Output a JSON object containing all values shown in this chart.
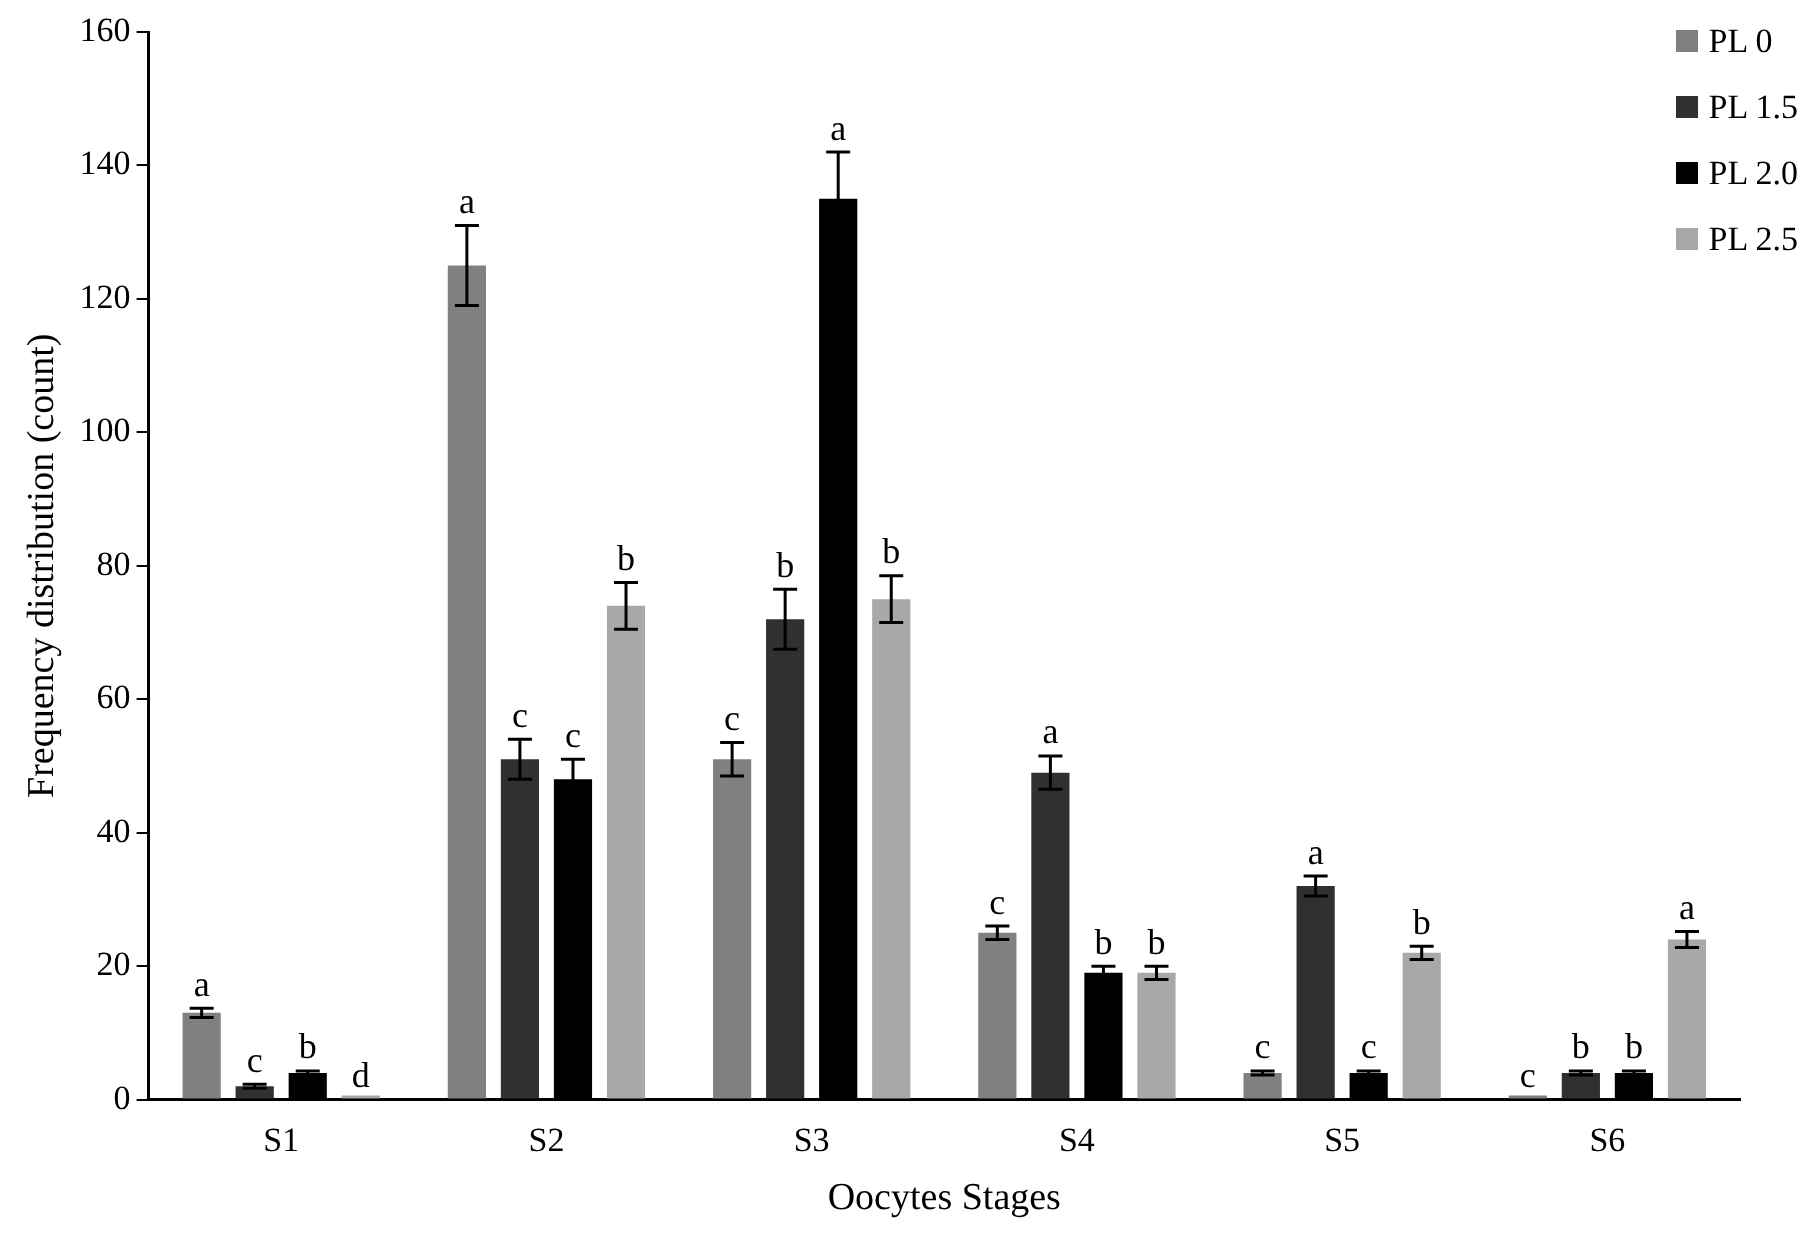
{
  "chart_data": {
    "type": "bar",
    "xlabel": "Oocytes Stages",
    "ylabel": "Frequency distribution (count)",
    "categories": [
      "S1",
      "S2",
      "S3",
      "S4",
      "S5",
      "S6"
    ],
    "ylim": [
      0,
      160
    ],
    "yticks": [
      0,
      20,
      40,
      60,
      80,
      100,
      120,
      140,
      160
    ],
    "grid": false,
    "legend": "top right",
    "series": [
      {
        "name": "PL 0",
        "color": "#808080",
        "values": [
          13,
          125,
          51,
          25,
          4,
          0
        ],
        "errors": [
          0.7,
          6,
          2.5,
          1,
          0.3,
          null
        ],
        "value_labels": [
          "a",
          "a",
          "c",
          "c",
          "c",
          "c"
        ]
      },
      {
        "name": "PL 1.5",
        "color": "#303030",
        "values": [
          2,
          51,
          72,
          49,
          32,
          4
        ],
        "errors": [
          0.3,
          3,
          4.5,
          2.5,
          1.5,
          0.3
        ],
        "value_labels": [
          "c",
          "c",
          "b",
          "a",
          "a",
          "b"
        ]
      },
      {
        "name": "PL 2.0",
        "color": "#000000",
        "values": [
          4,
          48,
          135,
          19,
          4,
          4
        ],
        "errors": [
          0.3,
          3,
          7,
          1,
          0.3,
          0.3
        ],
        "value_labels": [
          "b",
          "c",
          "a",
          "b",
          "c",
          "b"
        ]
      },
      {
        "name": "PL 2.5",
        "color": "#a8a8a8",
        "values": [
          0,
          74,
          75,
          19,
          22,
          24
        ],
        "errors": [
          null,
          3.5,
          3.5,
          1,
          1,
          1.2
        ],
        "value_labels": [
          "d",
          "b",
          "b",
          "b",
          "b",
          "a"
        ]
      }
    ]
  }
}
